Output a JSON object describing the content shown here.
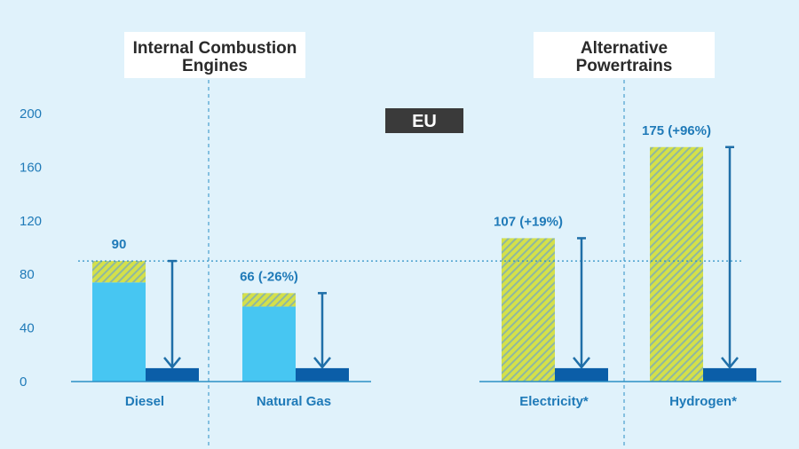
{
  "region_badge": "EU",
  "group_headers": [
    {
      "lines": [
        "Internal Combustion",
        "Engines"
      ]
    },
    {
      "lines": [
        "Alternative",
        "Powertrains"
      ]
    }
  ],
  "colors": {
    "background": "#e0f2fb",
    "axis_text": "#1f7ab8",
    "bar_light_blue": "#47c6f2",
    "bar_dark_blue": "#0b5ea8",
    "hatch_yellow": "#d4e04a",
    "hatch_stripe": "#8fb8a0",
    "arrow": "#1f6fa8",
    "reference_line": "#2a8fc4",
    "badge_bg": "#3a3a3a"
  },
  "chart_data": {
    "type": "bar",
    "title": "",
    "xlabel": "",
    "ylabel": "",
    "ylim": [
      0,
      200
    ],
    "yticks": [
      0,
      40,
      80,
      120,
      160,
      200
    ],
    "grid": false,
    "reference_line_value": 90,
    "categories": [
      "Diesel",
      "Natural Gas",
      "Electricity*",
      "Hydrogen*"
    ],
    "groups": [
      {
        "header": "Internal Combustion Engines",
        "categories": [
          "Diesel",
          "Natural Gas"
        ]
      },
      {
        "header": "Alternative Powertrains",
        "categories": [
          "Electricity*",
          "Hydrogen*"
        ]
      }
    ],
    "totals": [
      90,
      66,
      107,
      175
    ],
    "data_labels": [
      "90",
      "66 (-26%)",
      "107 (+19%)",
      "175 (+96%)"
    ],
    "solid_part": [
      74,
      56,
      0,
      0
    ],
    "hatched_part": [
      16,
      10,
      107,
      175
    ],
    "reduced_values": [
      10,
      10,
      10,
      10
    ]
  }
}
